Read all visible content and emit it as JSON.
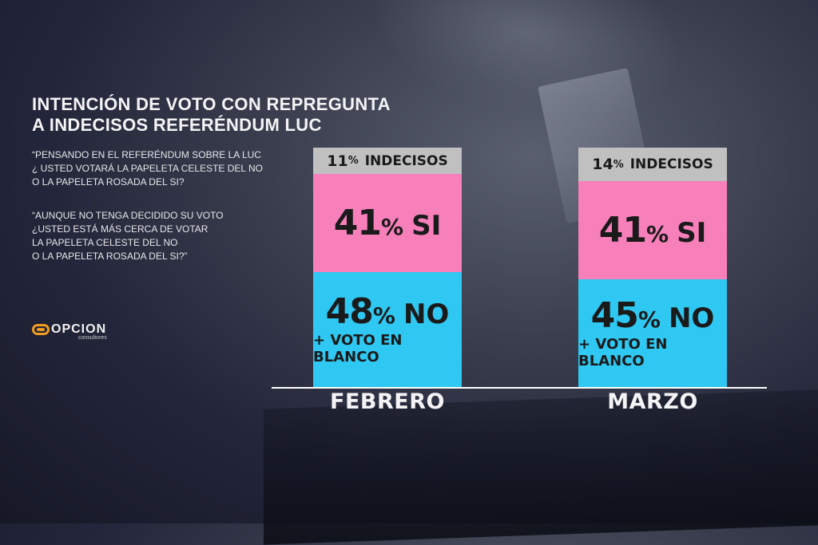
{
  "title_line1": "INTENCIÓN DE VOTO CON REPREGUNTA",
  "title_line2": "A INDECISOS REFERÉNDUM LUC",
  "question1": "“PENSANDO EN EL REFERÉNDUM SOBRE LA LUC\n¿ USTED VOTARÁ LA PAPELETA CELESTE DEL NO\nO LA PAPELETA ROSADA DEL SI?",
  "question2": "“AUNQUE NO TENGA DECIDIDO SU VOTO\n¿USTED ESTÁ MÁS CERCA DE VOTAR\nLA PAPELETA CELESTE DEL NO\nO LA PAPELETA ROSADA DEL SI?”",
  "logo": {
    "name": "OPCION",
    "sub": "consultores"
  },
  "colors": {
    "indecisos": "#c0c0c0",
    "si": "#f77fba",
    "no": "#2fc8f2"
  },
  "chart_data": {
    "type": "bar",
    "stacked": true,
    "categories": [
      "FEBRERO",
      "MARZO"
    ],
    "series": [
      {
        "name": "NO + VOTO EN BLANCO",
        "label": "NO",
        "sublabel": "+ VOTO EN BLANCO",
        "values": [
          48,
          45
        ]
      },
      {
        "name": "SI",
        "label": "SI",
        "values": [
          41,
          41
        ]
      },
      {
        "name": "INDECISOS",
        "label": "INDECISOS",
        "values": [
          11,
          14
        ]
      }
    ],
    "unit": "%"
  }
}
